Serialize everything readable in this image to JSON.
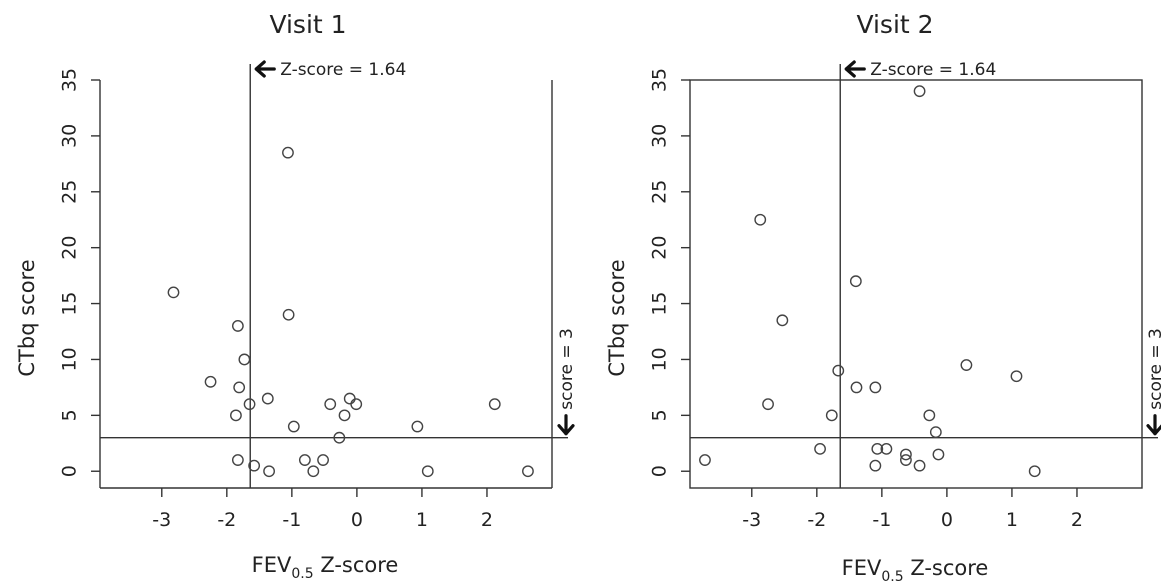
{
  "colors": {
    "background": "#ffffff",
    "axis": "#333333",
    "marker": "#444444",
    "text": "#222222"
  },
  "chart_data": [
    {
      "type": "scatter",
      "title": "Visit 1",
      "xlabel": "FEV",
      "xlabel_sub": "0.5",
      "xlabel_suffix": " Z-score",
      "ylabel": "CTbq score",
      "xlim": [
        -3.95,
        3.0
      ],
      "ylim": [
        -1.5,
        35.0
      ],
      "xticks": [
        -3,
        -2,
        -1,
        0,
        1,
        2
      ],
      "yticks": [
        0,
        5,
        10,
        15,
        20,
        25,
        30,
        35
      ],
      "reference_lines": {
        "vertical_x": -1.64,
        "vertical_label": "Z-score = 1.64",
        "horizontal_y": 3,
        "horizontal_label": "score = 3"
      },
      "box": "partial",
      "points": [
        {
          "x": -2.82,
          "y": 16.0
        },
        {
          "x": -1.83,
          "y": 13.0
        },
        {
          "x": -1.73,
          "y": 10.0
        },
        {
          "x": -2.25,
          "y": 8.0
        },
        {
          "x": -1.81,
          "y": 7.5
        },
        {
          "x": -1.37,
          "y": 6.5
        },
        {
          "x": -1.65,
          "y": 6.0
        },
        {
          "x": -1.86,
          "y": 5.0
        },
        {
          "x": -1.83,
          "y": 1.0
        },
        {
          "x": -1.58,
          "y": 0.5
        },
        {
          "x": -1.35,
          "y": 0.0
        },
        {
          "x": -1.06,
          "y": 28.5
        },
        {
          "x": -1.05,
          "y": 14.0
        },
        {
          "x": -0.97,
          "y": 4.0
        },
        {
          "x": -0.8,
          "y": 1.0
        },
        {
          "x": -0.67,
          "y": 0.0
        },
        {
          "x": -0.52,
          "y": 1.0
        },
        {
          "x": -0.41,
          "y": 6.0
        },
        {
          "x": -0.11,
          "y": 6.5
        },
        {
          "x": -0.01,
          "y": 6.0
        },
        {
          "x": -0.19,
          "y": 5.0
        },
        {
          "x": -0.27,
          "y": 3.0
        },
        {
          "x": 0.93,
          "y": 4.0
        },
        {
          "x": 1.09,
          "y": 0.0
        },
        {
          "x": 2.12,
          "y": 6.0
        },
        {
          "x": 2.63,
          "y": 0.0
        }
      ]
    },
    {
      "type": "scatter",
      "title": "Visit 2",
      "xlabel": "FEV",
      "xlabel_sub": "0.5",
      "xlabel_suffix": " Z-score",
      "ylabel": "CTbq score",
      "xlim": [
        -3.95,
        3.0
      ],
      "ylim": [
        -1.5,
        35.0
      ],
      "xticks": [
        -3,
        -2,
        -1,
        0,
        1,
        2
      ],
      "yticks": [
        0,
        5,
        10,
        15,
        20,
        25,
        30,
        35
      ],
      "reference_lines": {
        "vertical_x": -1.64,
        "vertical_label": "Z-score = 1.64",
        "horizontal_y": 3,
        "horizontal_label": "score = 3"
      },
      "box": "full",
      "points": [
        {
          "x": -3.72,
          "y": 1.0
        },
        {
          "x": -2.87,
          "y": 22.5
        },
        {
          "x": -2.53,
          "y": 13.5
        },
        {
          "x": -2.75,
          "y": 6.0
        },
        {
          "x": -1.95,
          "y": 2.0
        },
        {
          "x": -1.77,
          "y": 5.0
        },
        {
          "x": -1.67,
          "y": 9.0
        },
        {
          "x": -1.4,
          "y": 17.0
        },
        {
          "x": -1.39,
          "y": 7.5
        },
        {
          "x": -1.1,
          "y": 7.5
        },
        {
          "x": -1.07,
          "y": 2.0
        },
        {
          "x": -1.1,
          "y": 0.5
        },
        {
          "x": -0.93,
          "y": 2.0
        },
        {
          "x": -0.63,
          "y": 1.5
        },
        {
          "x": -0.63,
          "y": 1.0
        },
        {
          "x": -0.42,
          "y": 34.0
        },
        {
          "x": -0.42,
          "y": 0.5
        },
        {
          "x": -0.27,
          "y": 5.0
        },
        {
          "x": -0.17,
          "y": 3.5
        },
        {
          "x": -0.13,
          "y": 1.5
        },
        {
          "x": 0.3,
          "y": 9.5
        },
        {
          "x": 1.07,
          "y": 8.5
        },
        {
          "x": 1.35,
          "y": 0.0
        }
      ]
    }
  ]
}
